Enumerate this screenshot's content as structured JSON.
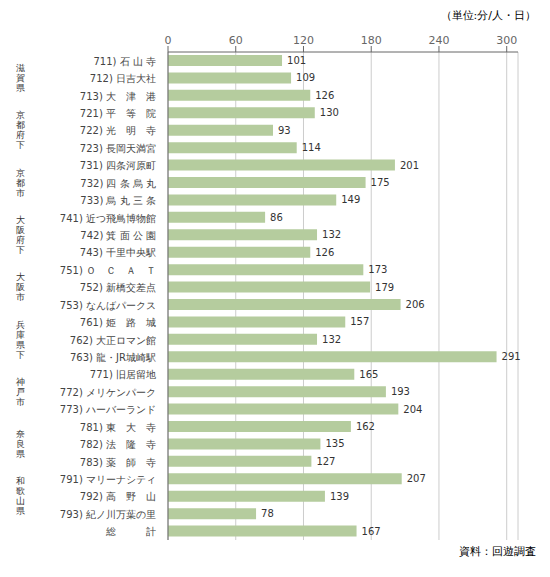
{
  "chart_data": {
    "type": "bar",
    "orientation": "horizontal",
    "categories": [
      "711) 石 山 寺",
      "712) 日吉大社",
      "713) 大　津　港",
      "721) 平　等　院",
      "722) 光　明　寺",
      "723) 長岡天満宮",
      "731) 四条河原町",
      "732) 四 条 烏 丸",
      "733) 烏 丸 三 条",
      "741) 近つ飛鳥博物館",
      "742) 箕 面 公 園",
      "743) 千里中央駅",
      "751) Ｏ　Ｃ　Ａ　Ｔ",
      "752) 新橋交差点",
      "753) なんばパークス",
      "761) 姫　路　城",
      "762) 大正ロマン館",
      "763) 龍・JR城崎駅",
      "771) 旧居留地",
      "772) メリケンパーク",
      "773) ハーバーランド",
      "781) 東　大　寺",
      "782) 法　隆　寺",
      "783) 薬　師　寺",
      "791) マリーナシティ",
      "792) 高　野　山",
      "793) 紀ノ川万葉の里",
      "総　　　計"
    ],
    "values": [
      101,
      109,
      126,
      130,
      93,
      114,
      201,
      175,
      149,
      86,
      132,
      126,
      173,
      179,
      206,
      157,
      132,
      291,
      165,
      193,
      204,
      162,
      135,
      127,
      207,
      139,
      78,
      167
    ],
    "color": "#b5cc9e",
    "xlim": [
      0,
      310
    ],
    "xticks": [
      0,
      60,
      120,
      180,
      240,
      300
    ],
    "grid": true,
    "data_labels": true,
    "groups": [
      {
        "name": "滋賀県",
        "size": 3
      },
      {
        "name": "京都府下",
        "size": 3
      },
      {
        "name": "京都市",
        "size": 3
      },
      {
        "name": "大阪府下",
        "size": 3
      },
      {
        "name": "大阪市",
        "size": 3
      },
      {
        "name": "兵庫県下",
        "size": 3
      },
      {
        "name": "神戸市",
        "size": 3
      },
      {
        "name": "奈良県",
        "size": 3
      },
      {
        "name": "和歌山県",
        "size": 3
      }
    ],
    "annotations": [
      "（単位:分/人・日）",
      "資料：回遊調査"
    ]
  }
}
